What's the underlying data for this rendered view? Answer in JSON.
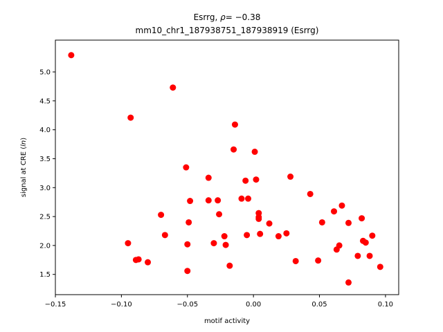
{
  "chart_data": {
    "type": "scatter",
    "title_line1": "Esrrg, ρ= −0.38",
    "title_line2": "mm10_chr1_187938751_187938919 (Esrrg)",
    "xlabel": "motif activity",
    "ylabel": "signal at CRE (ln)",
    "xlim": [
      -0.15,
      0.11
    ],
    "ylim": [
      1.15,
      5.55
    ],
    "xticks": [
      {
        "value": -0.15,
        "label": "−0.15"
      },
      {
        "value": -0.1,
        "label": "−0.10"
      },
      {
        "value": -0.05,
        "label": "−0.05"
      },
      {
        "value": 0.0,
        "label": "0.00"
      },
      {
        "value": 0.05,
        "label": "0.05"
      },
      {
        "value": 0.1,
        "label": "0.10"
      }
    ],
    "yticks": [
      {
        "value": 1.5,
        "label": "1.5"
      },
      {
        "value": 2.0,
        "label": "2.0"
      },
      {
        "value": 2.5,
        "label": "2.5"
      },
      {
        "value": 3.0,
        "label": "3.0"
      },
      {
        "value": 3.5,
        "label": "3.5"
      },
      {
        "value": 4.0,
        "label": "4.0"
      },
      {
        "value": 4.5,
        "label": "4.5"
      },
      {
        "value": 5.0,
        "label": "5.0"
      }
    ],
    "grid": false,
    "point_color": "#ff0000",
    "points": [
      {
        "x": -0.138,
        "y": 5.29
      },
      {
        "x": -0.093,
        "y": 4.21
      },
      {
        "x": -0.061,
        "y": 4.73
      },
      {
        "x": -0.014,
        "y": 4.09
      },
      {
        "x": -0.015,
        "y": 3.66
      },
      {
        "x": 0.001,
        "y": 3.62
      },
      {
        "x": -0.051,
        "y": 3.35
      },
      {
        "x": -0.034,
        "y": 3.17
      },
      {
        "x": -0.006,
        "y": 3.12
      },
      {
        "x": 0.002,
        "y": 3.14
      },
      {
        "x": 0.028,
        "y": 3.19
      },
      {
        "x": 0.043,
        "y": 2.89
      },
      {
        "x": -0.034,
        "y": 2.78
      },
      {
        "x": -0.027,
        "y": 2.78
      },
      {
        "x": -0.048,
        "y": 2.77
      },
      {
        "x": -0.009,
        "y": 2.81
      },
      {
        "x": -0.004,
        "y": 2.81
      },
      {
        "x": 0.067,
        "y": 2.69
      },
      {
        "x": 0.061,
        "y": 2.59
      },
      {
        "x": -0.07,
        "y": 2.53
      },
      {
        "x": -0.026,
        "y": 2.54
      },
      {
        "x": 0.004,
        "y": 2.56
      },
      {
        "x": 0.004,
        "y": 2.49
      },
      {
        "x": 0.004,
        "y": 2.46
      },
      {
        "x": 0.082,
        "y": 2.47
      },
      {
        "x": -0.049,
        "y": 2.4
      },
      {
        "x": 0.012,
        "y": 2.38
      },
      {
        "x": 0.052,
        "y": 2.4
      },
      {
        "x": 0.072,
        "y": 2.39
      },
      {
        "x": -0.067,
        "y": 2.18
      },
      {
        "x": -0.022,
        "y": 2.16
      },
      {
        "x": -0.005,
        "y": 2.18
      },
      {
        "x": 0.005,
        "y": 2.2
      },
      {
        "x": 0.019,
        "y": 2.16
      },
      {
        "x": 0.025,
        "y": 2.21
      },
      {
        "x": 0.09,
        "y": 2.17
      },
      {
        "x": -0.095,
        "y": 2.04
      },
      {
        "x": -0.05,
        "y": 2.02
      },
      {
        "x": -0.03,
        "y": 2.04
      },
      {
        "x": -0.021,
        "y": 2.01
      },
      {
        "x": 0.065,
        "y": 2.0
      },
      {
        "x": 0.083,
        "y": 2.08
      },
      {
        "x": 0.085,
        "y": 2.05
      },
      {
        "x": 0.063,
        "y": 1.93
      },
      {
        "x": 0.079,
        "y": 1.82
      },
      {
        "x": 0.088,
        "y": 1.82
      },
      {
        "x": -0.089,
        "y": 1.75
      },
      {
        "x": -0.087,
        "y": 1.76
      },
      {
        "x": -0.08,
        "y": 1.71
      },
      {
        "x": 0.032,
        "y": 1.73
      },
      {
        "x": 0.049,
        "y": 1.74
      },
      {
        "x": -0.018,
        "y": 1.65
      },
      {
        "x": 0.096,
        "y": 1.63
      },
      {
        "x": -0.05,
        "y": 1.56
      },
      {
        "x": 0.072,
        "y": 1.36
      }
    ]
  }
}
